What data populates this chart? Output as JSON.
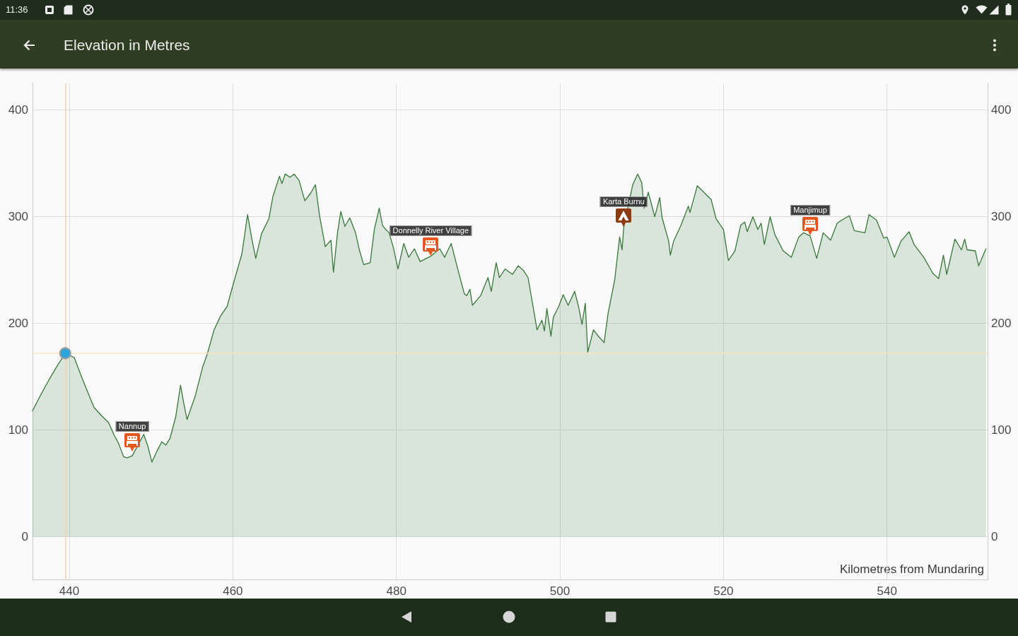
{
  "chart_data": {
    "type": "area",
    "title": "Elevation in Metres",
    "xlabel": "Kilometres from Mundaring",
    "x": [
      435.5,
      436.5,
      437.5,
      438.5,
      439.5,
      440.6,
      441.6,
      442.6,
      443.05,
      444.0,
      444.8,
      445.5,
      446.0,
      446.65,
      447.1,
      447.7,
      449.1,
      449.6,
      450.1,
      450.7,
      451.3,
      451.8,
      452.3,
      453.0,
      453.6,
      454.0,
      454.4,
      455.4,
      456.3,
      456.9,
      457.7,
      458.5,
      459.3,
      460.2,
      461.1,
      461.8,
      462.3,
      462.8,
      463.5,
      464.4,
      464.9,
      465.7,
      466.0,
      466.4,
      467.0,
      467.5,
      468.1,
      468.8,
      469.5,
      470.1,
      470.6,
      471.3,
      472.0,
      472.3,
      472.8,
      473.2,
      473.7,
      474.3,
      475.0,
      475.5,
      476.0,
      476.8,
      477.3,
      477.9,
      478.3,
      478.7,
      479.1,
      479.6,
      480.2,
      480.9,
      481.5,
      482.2,
      482.9,
      484.2,
      485.3,
      485.9,
      486.7,
      487.6,
      488.3,
      488.6,
      489.0,
      489.3,
      490.3,
      491.2,
      491.6,
      492.2,
      492.6,
      493.3,
      494.2,
      494.9,
      495.5,
      496.1,
      496.8,
      497.2,
      497.8,
      498.1,
      498.4,
      498.9,
      499.2,
      499.8,
      500.4,
      501.0,
      501.8,
      502.3,
      502.7,
      503.1,
      503.4,
      504.1,
      504.7,
      505.4,
      505.9,
      506.7,
      507.3,
      507.6,
      507.8,
      508.9,
      509.5,
      510.0,
      510.3,
      510.8,
      511.6,
      512.2,
      512.5,
      513.3,
      513.5,
      513.9,
      514.8,
      515.7,
      515.9,
      516.8,
      517.2,
      518.5,
      519.1,
      520.0,
      520.6,
      521.4,
      522.1,
      522.6,
      522.9,
      523.6,
      524.2,
      524.6,
      525.0,
      525.7,
      526.3,
      527.3,
      528.3,
      529.2,
      529.8,
      530.6,
      531.4,
      532.2,
      533.1,
      533.9,
      534.7,
      535.4,
      536.0,
      537.3,
      537.8,
      538.7,
      539.6,
      540.0,
      540.9,
      541.7,
      542.7,
      543.3,
      544.5,
      545.6,
      546.3,
      546.9,
      547.3,
      548.3,
      549.1,
      549.5,
      549.8,
      550.8,
      551.2,
      552.1
    ],
    "series": [
      {
        "color": "#38783a",
        "values": [
          118,
          133,
          147,
          160,
          172,
          168,
          148,
          129,
          121,
          113,
          107,
          95,
          88,
          75,
          74,
          76,
          96,
          85,
          70,
          80,
          89,
          86,
          92,
          112,
          142,
          125,
          110,
          132,
          159,
          172,
          194,
          207,
          216,
          241,
          265,
          302,
          280,
          261,
          284,
          298,
          319,
          338,
          331,
          340,
          337,
          340,
          334,
          315,
          322,
          330,
          301,
          272,
          278,
          248,
          285,
          305,
          291,
          299,
          285,
          268,
          255,
          257,
          288,
          308,
          292,
          288,
          285,
          272,
          251,
          275,
          262,
          270,
          258,
          263,
          270,
          262,
          275,
          248,
          228,
          226,
          232,
          217,
          226,
          243,
          230,
          257,
          243,
          251,
          246,
          254,
          250,
          243,
          212,
          194,
          203,
          193,
          214,
          188,
          206,
          215,
          227,
          217,
          230,
          215,
          199,
          219,
          173,
          194,
          188,
          182,
          210,
          241,
          281,
          269,
          290,
          330,
          340,
          332,
          308,
          323,
          300,
          318,
          299,
          277,
          264,
          277,
          292,
          310,
          304,
          329,
          326,
          316,
          298,
          288,
          259,
          268,
          292,
          295,
          286,
          300,
          288,
          294,
          274,
          300,
          283,
          268,
          262,
          281,
          285,
          282,
          261,
          285,
          278,
          294,
          298,
          301,
          287,
          285,
          302,
          297,
          280,
          281,
          262,
          277,
          286,
          274,
          262,
          247,
          242,
          264,
          246,
          279,
          269,
          279,
          269,
          268,
          254,
          270
        ]
      },
      {
        "type": "scatter",
        "marker": "circle",
        "color": "#2ba4dc",
        "x": [
          439.5
        ],
        "values": [
          172
        ]
      }
    ],
    "xlim": [
      435.5,
      552.3
    ],
    "xticks": [
      440,
      460,
      480,
      500,
      520,
      540
    ],
    "ylim": [
      -40,
      425
    ],
    "yticks": [
      0,
      100,
      200,
      300,
      400
    ],
    "y2lim": [
      -40,
      425
    ],
    "y2ticks": [
      0,
      100,
      200,
      300,
      400
    ],
    "grid": true,
    "ref_lines": [
      {
        "axis": "x",
        "value": 439.5,
        "color": "#f6d2ab"
      },
      {
        "axis": "y",
        "value": 172,
        "color": "#f6e2c0"
      }
    ],
    "annotations": [
      "11:36",
      {
        "text": "Nannup",
        "x": 447.7,
        "y": 79
      },
      {
        "text": "Donnelly River Village",
        "x": 484.2,
        "y": 263
      },
      {
        "text": "Karta Burnu",
        "x": 507.8,
        "y": 290
      },
      {
        "text": "Manjimup",
        "x": 530.6,
        "y": 282
      }
    ]
  }
}
